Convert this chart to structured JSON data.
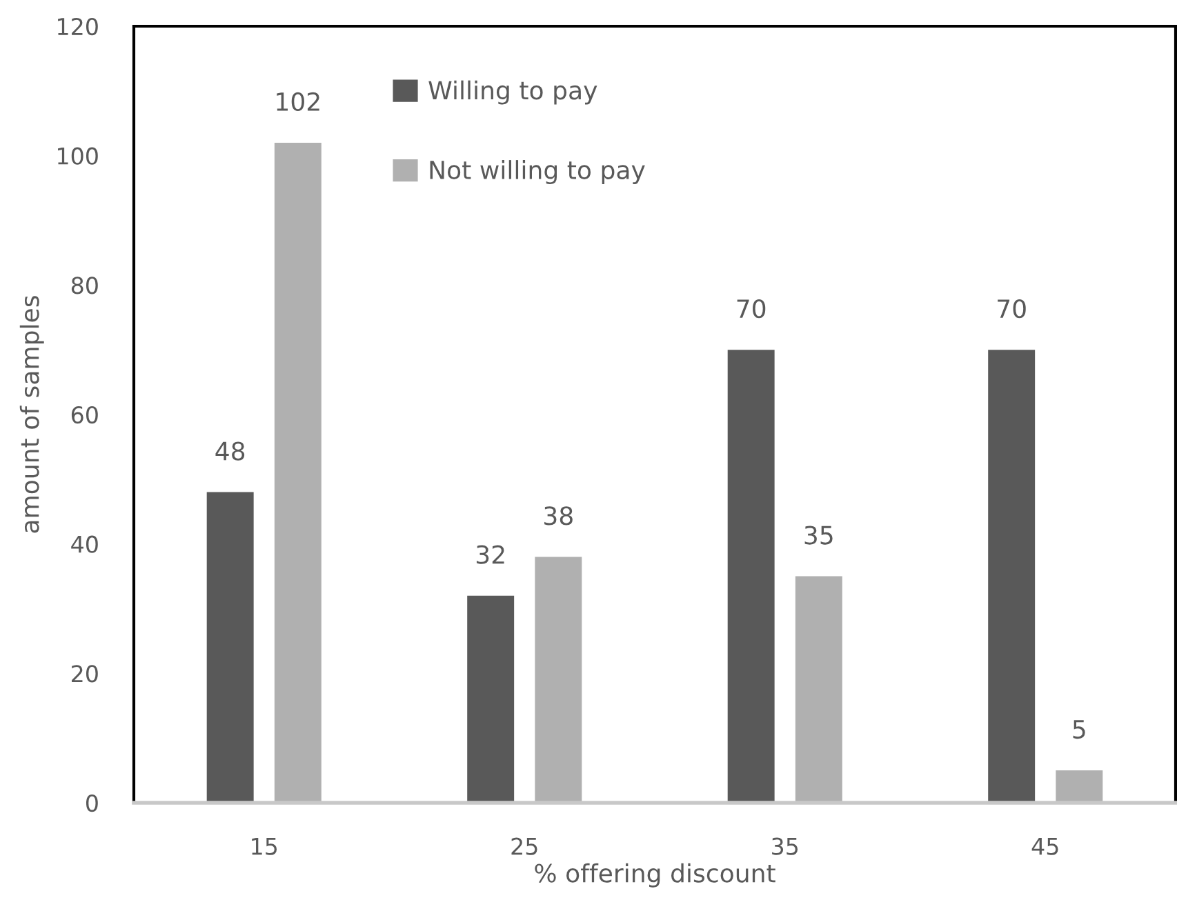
{
  "chart_data": {
    "type": "bar",
    "xlabel": "% offering discount",
    "ylabel": "amount of samples",
    "categories": [
      "15",
      "25",
      "35",
      "45"
    ],
    "series": [
      {
        "name": "Willing to pay",
        "color": "#595959",
        "values": [
          48,
          32,
          70,
          70
        ]
      },
      {
        "name": "Not willing to pay",
        "color": "#b0b0b0",
        "values": [
          102,
          38,
          35,
          5
        ]
      }
    ],
    "ylim": [
      0,
      120
    ],
    "yticks": [
      0,
      20,
      40,
      60,
      80,
      100,
      120
    ],
    "grid": false,
    "legend": "top",
    "data_labels": true
  }
}
